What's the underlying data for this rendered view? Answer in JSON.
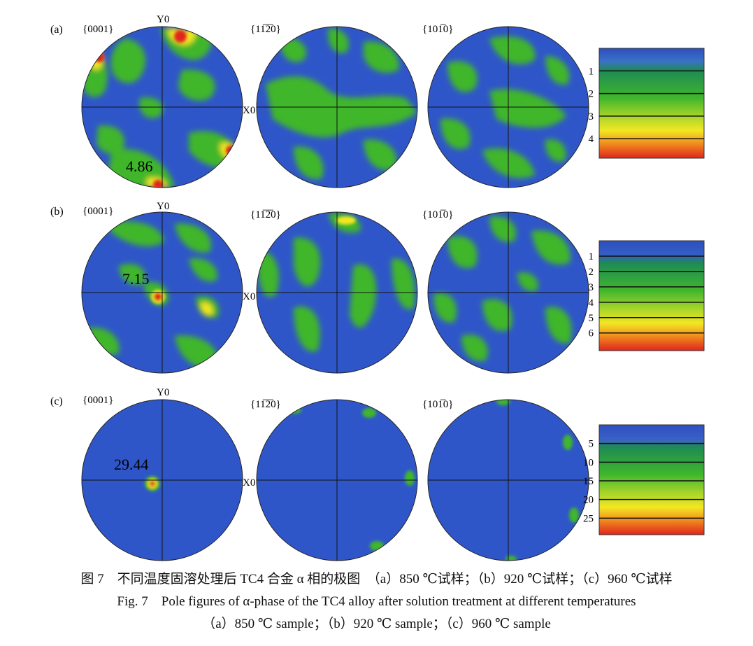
{
  "rows": [
    {
      "label": "(a)",
      "x_axis_label": "X0",
      "y_axis_label": "Y0",
      "planes": [
        "{0001}",
        "{11̅2̅0}",
        "{101̅0}"
      ],
      "max_value": "4.86",
      "legend_ticks": [
        "1",
        "2",
        "3",
        "4"
      ],
      "legend_max": 4.86
    },
    {
      "label": "(b)",
      "x_axis_label": "X0",
      "y_axis_label": "Y0",
      "planes": [
        "{0001}",
        "{11̅2̅0}",
        "{101̅0}"
      ],
      "max_value": "7.15",
      "legend_ticks": [
        "1",
        "2",
        "3",
        "4",
        "5",
        "6"
      ],
      "legend_max": 7.15
    },
    {
      "label": "(c)",
      "x_axis_label": "X0",
      "y_axis_label": "Y0",
      "planes": [
        "{0001}",
        "{11̅2̅0}",
        "{101̅0}"
      ],
      "max_value": "29.44",
      "legend_ticks": [
        "5",
        "10",
        "15",
        "20",
        "25"
      ],
      "legend_max": 29.44
    }
  ],
  "colors": {
    "background_blue": "#2f56c9",
    "green": "#3fb62c",
    "yellow": "#f3e723",
    "red": "#e0251d"
  },
  "caption": {
    "cn": "图 7　不同温度固溶处理后 TC4 合金 α 相的极图　（a）850 ℃试样；（b）920 ℃试样；（c）960 ℃试样",
    "en1": "Fig. 7　Pole figures of α-phase of the TC4 alloy after solution treatment at different temperatures",
    "en2": "（a）850 ℃ sample；（b）920 ℃ sample；（c）960 ℃ sample"
  }
}
